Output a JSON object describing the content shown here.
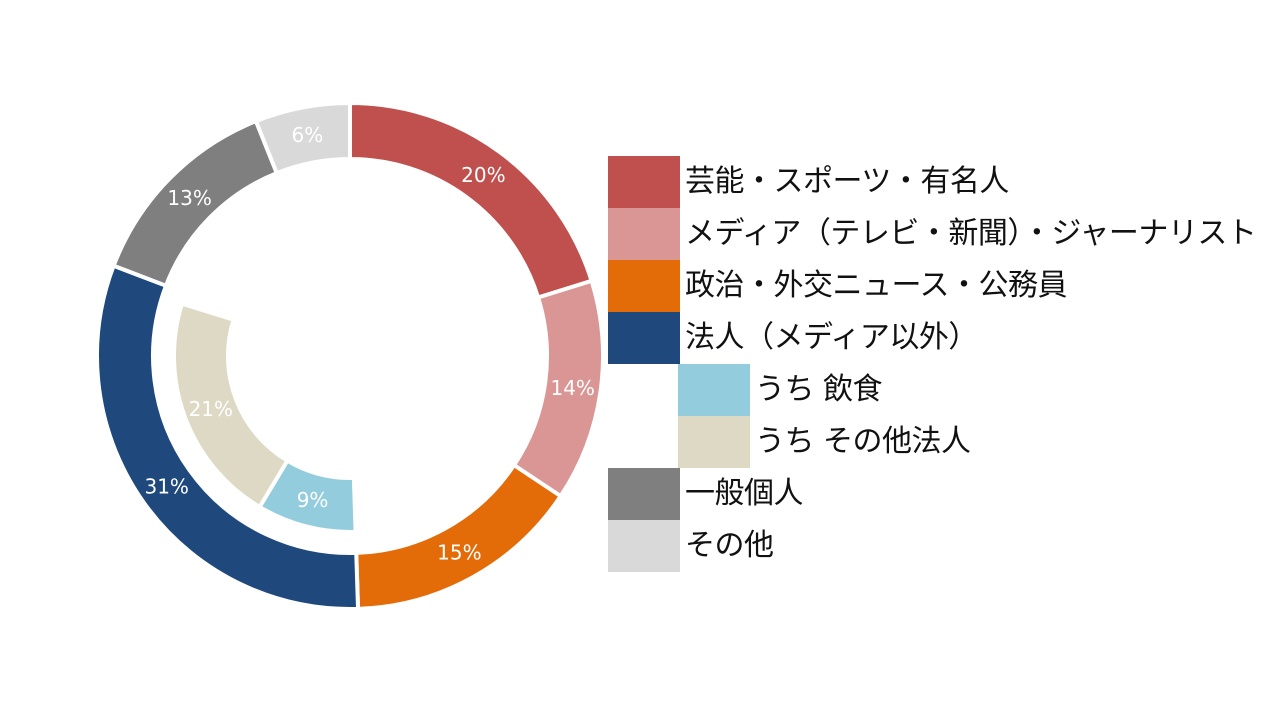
{
  "chart_data": {
    "type": "donut",
    "outer_ring": {
      "series": [
        {
          "name": "芸能・スポーツ・有名人",
          "value": 20,
          "label": "20%",
          "color": "#C0504D",
          "label_color": "#ffffff"
        },
        {
          "name": "メディア（テレビ・新聞）・ジャーナリスト",
          "value": 14,
          "label": "14%",
          "color": "#D99694",
          "label_color": "#ffffff"
        },
        {
          "name": "政治・外交ニュース・公務員",
          "value": 15,
          "label": "15%",
          "color": "#E36C09",
          "label_color": "#ffffff"
        },
        {
          "name": "法人（メディア以外）",
          "value": 31,
          "label": "31%",
          "color": "#1F497D",
          "label_color": "#ffffff"
        },
        {
          "name": "一般個人",
          "value": 13,
          "label": "13%",
          "color": "#7F7F7F",
          "label_color": "#ffffff"
        },
        {
          "name": "その他",
          "value": 6,
          "label": "6%",
          "color": "#D9D9D9",
          "label_color": "#ffffff"
        }
      ]
    },
    "inner_ring": {
      "start_value": 49,
      "series": [
        {
          "name": "うち 飲食",
          "value": 9,
          "label": "9%",
          "color": "#93CDDD",
          "label_color": "#ffffff"
        },
        {
          "name": "うち その他法人",
          "value": 21,
          "label": "21%",
          "color": "#DDD9C4",
          "label_color": "#ffffff"
        }
      ]
    }
  },
  "legend": [
    {
      "label": "芸能・スポーツ・有名人",
      "color": "#C0504D",
      "sub": false
    },
    {
      "label": "メディア（テレビ・新聞）・ジャーナリスト",
      "color": "#D99694",
      "sub": false
    },
    {
      "label": "政治・外交ニュース・公務員",
      "color": "#E36C09",
      "sub": false
    },
    {
      "label": "法人（メディア以外）",
      "color": "#1F497D",
      "sub": false
    },
    {
      "label": "うち 飲食",
      "color": "#93CDDD",
      "sub": true
    },
    {
      "label": "うち その他法人",
      "color": "#DDD9C4",
      "sub": true
    },
    {
      "label": "一般個人",
      "color": "#7F7F7F",
      "sub": false
    },
    {
      "label": "その他",
      "color": "#D9D9D9",
      "sub": false
    }
  ]
}
